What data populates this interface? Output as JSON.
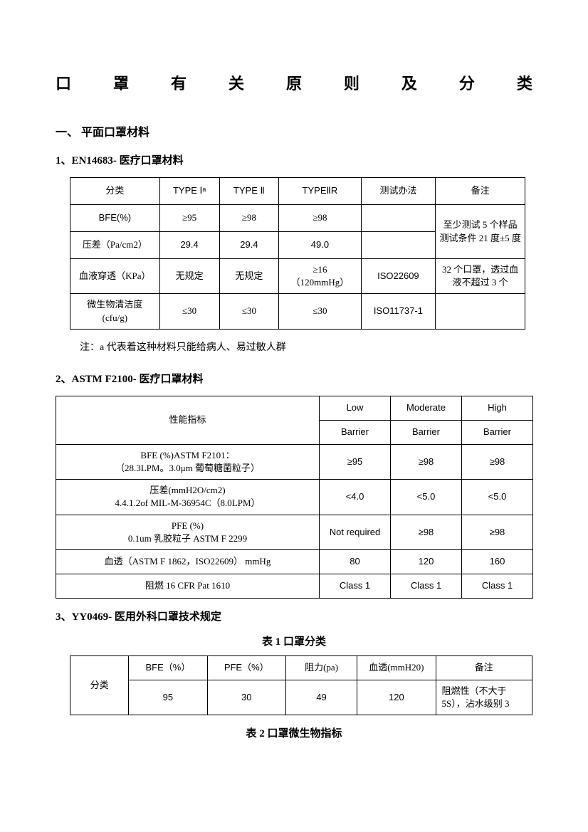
{
  "title_chars": [
    "口",
    "罩",
    "有",
    "关",
    "原",
    "则",
    "及",
    "分",
    "类"
  ],
  "s1": {
    "h1": "一、  平面口罩材料",
    "h2_1": "1、EN14683-   医疗口罩材料",
    "t1": {
      "head": [
        "分类",
        "TYPE  Ⅰᵃ",
        "TYPE  Ⅱ",
        "TYPEⅡR",
        "测试办法",
        "备注"
      ],
      "rows": [
        {
          "c": [
            "BFE(%)",
            "≥95",
            "≥98",
            "≥98",
            "",
            ""
          ],
          "merge_note": "start",
          "note": "至少测试 5 个样品测试条件 21 度±5 度"
        },
        {
          "c": [
            "压差（Pa/cm2）",
            "29.4",
            "29.4",
            "49.0",
            "",
            ""
          ]
        },
        {
          "c": [
            "血液穿透（KPa）",
            "无规定",
            "无规定",
            "≥16\n（120mmHg）",
            "ISO22609",
            "32 个口罩，透过血液不超过 3 个"
          ]
        },
        {
          "c": [
            "微生物清洁度\n(cfu/g)",
            "≤30",
            "≤30",
            "≤30",
            "ISO11737-1",
            ""
          ]
        }
      ]
    },
    "note": "注：a 代表着这种材料只能给病人、易过敏人群",
    "h2_2": "2、ASTM F2100-   医疗口罩材料",
    "t2": {
      "head_row1": [
        "Low",
        "Moderate",
        "High"
      ],
      "head_row2": [
        "性能指标",
        "Barrier",
        "Barrier",
        "Barrier"
      ],
      "rows": [
        [
          "BFE (%)ASTM   F2101：\n（28.3LPM。3.0μm 葡萄糖菌粒子）",
          "≥95",
          "≥98",
          "≥98"
        ],
        [
          "压差(mmH2O/cm2)\n4.4.1.2of MIL-M-36954C（8.0LPM）",
          "<4.0",
          "<5.0",
          "<5.0"
        ],
        [
          "PFE (%)\n0.1um  乳胶粒子 ASTM F 2299",
          "Not required",
          "≥98",
          "≥98"
        ],
        [
          "血透（ASTM F 1862，ISO22609） mmHg",
          "80",
          "120",
          "160"
        ],
        [
          "阻燃 16 CFR Pat 1610",
          "Class 1",
          "Class 1",
          "Class 1"
        ]
      ]
    },
    "h2_3": "3、YY0469-   医用外科口罩技术规定",
    "t3_caption": "表 1     口罩分类",
    "t3": {
      "head": [
        "分类",
        "BFE（%）",
        "PFE（%）",
        "阻力(pa)",
        "血透(mmH20)",
        "备注"
      ],
      "row": [
        "",
        "95",
        "30",
        "49",
        "120",
        "阻燃性（不大于5S），沾水级别 3"
      ]
    },
    "t4_caption": "表 2    口罩微生物指标"
  }
}
